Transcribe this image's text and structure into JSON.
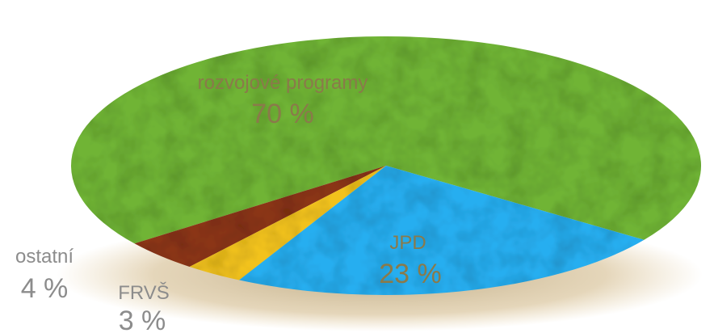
{
  "chart_data": {
    "type": "pie",
    "title": "",
    "labels": [
      "rozvojové programy",
      "JPD",
      "FRVŠ",
      "ostatní"
    ],
    "values": [
      70,
      23,
      3,
      4
    ],
    "value_labels": [
      "70 %",
      "23 %",
      "3 %",
      "4 %"
    ],
    "colors": [
      "#6fb436",
      "#25aef0",
      "#f2c21a",
      "#8b3416"
    ],
    "legend": "none"
  }
}
